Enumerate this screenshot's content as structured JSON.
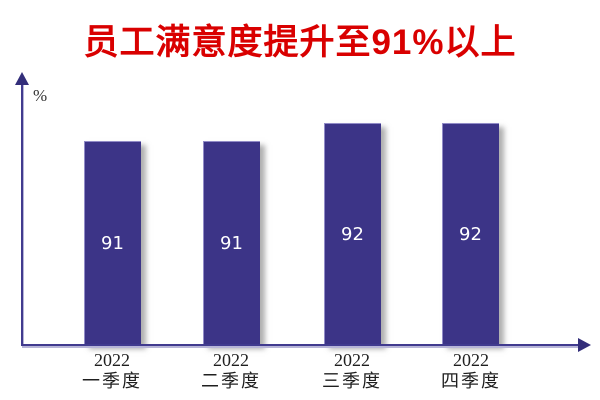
{
  "title": {
    "text": "员工满意度提升至91%以上",
    "color": "#d90000"
  },
  "chart_data": {
    "type": "bar",
    "title": "员工满意度提升至91%以上",
    "categories": [
      "2022 一季度",
      "2022 二季度",
      "2022 三季度",
      "2022 四季度"
    ],
    "values": [
      91,
      91,
      92,
      92
    ],
    "bar_labels": [
      "91",
      "91",
      "92",
      "92"
    ],
    "xlabel": "",
    "ylabel": "%",
    "ylim": [
      80,
      94
    ],
    "grid": false,
    "legend": false,
    "bar_color": "#3c3487",
    "axis_color": "#413b8f",
    "ticks": [
      {
        "year": "2022",
        "quarter": "一季度"
      },
      {
        "year": "2022",
        "quarter": "二季度"
      },
      {
        "year": "2022",
        "quarter": "三季度"
      },
      {
        "year": "2022",
        "quarter": "四季度"
      }
    ]
  }
}
